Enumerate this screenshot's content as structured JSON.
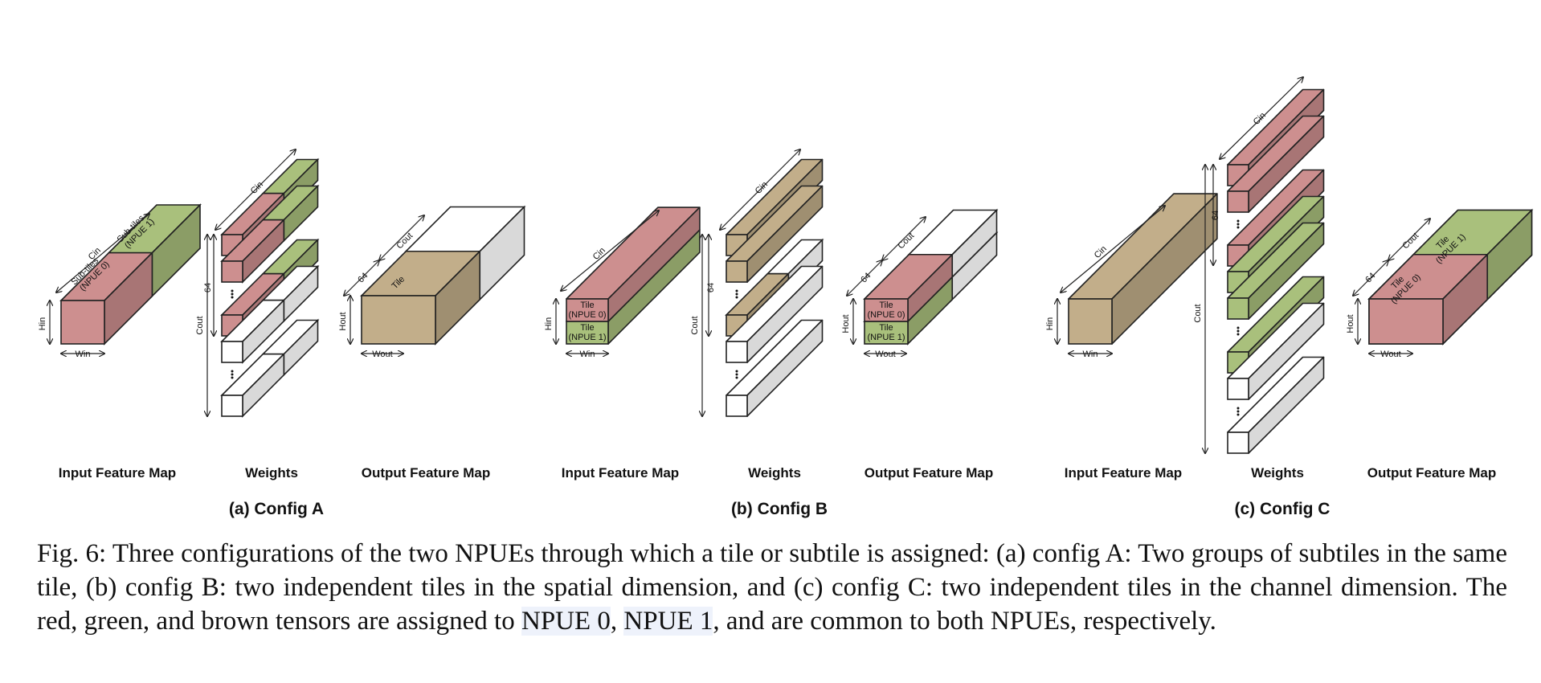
{
  "colors": {
    "npue0_red": "#cd8f8f",
    "npue1_green": "#a9c07c",
    "common_brown": "#c2ae8a",
    "unassigned_white": "#ffffff",
    "edge": "#222222"
  },
  "panels": [
    {
      "title": "(a) Config A",
      "labels": {
        "input": "Input Feature Map",
        "weights": "Weights",
        "output": "Output Feature Map"
      },
      "annotations": {
        "cin": "Cin",
        "cout_top": "Cout",
        "cout_side": "Cout",
        "hin": "Hin",
        "win": "Win",
        "hout": "Hout",
        "wout": "Wout",
        "ch64": "64",
        "out64": "64",
        "subtiles0_line1": "Sub-tiles",
        "subtiles0_line2": "(NPUE 0)",
        "subtiles1_line1": "Sub-tiles",
        "subtiles1_line2": "(NPUE 1)",
        "tile": "Tile"
      }
    },
    {
      "title": "(b) Config B",
      "labels": {
        "input": "Input Feature Map",
        "weights": "Weights",
        "output": "Output Feature Map"
      },
      "annotations": {
        "cin": "Cin",
        "cout_top": "Cout",
        "cout_side": "Cout",
        "hin": "Hin",
        "win": "Win",
        "hout": "Hout",
        "wout": "Wout",
        "ch64": "64",
        "out64": "64",
        "tile": "Tile",
        "npue0": "(NPUE 0)",
        "npue1": "(NPUE 1)"
      }
    },
    {
      "title": "(c) Config C",
      "labels": {
        "input": "Input Feature Map",
        "weights": "Weights",
        "output": "Output Feature Map"
      },
      "annotations": {
        "cin": "Cin",
        "cout_top": "Cout",
        "cout_side": "Cout",
        "hin": "Hin",
        "win": "Win",
        "hout": "Hout",
        "wout": "Wout",
        "ch64": "64",
        "out64": "64",
        "tile": "Tile",
        "npue0": "(NPUE 0)",
        "npue1": "(NPUE 1)"
      }
    }
  ],
  "caption": {
    "part1": "Fig. 6: Three configurations of the two NPUEs through which a tile or subtile is assigned: (a) config A: Two groups of subtiles in the same tile, (b) config B: two independent tiles in the spatial dimension, and (c) config C: two independent tiles in the channel dimension. The red, green, and brown tensors are assigned to ",
    "npue0": "NPUE 0",
    "sep": ", ",
    "npue1": "NPUE 1",
    "part2": ", and are common to both NPUEs, respectively."
  }
}
